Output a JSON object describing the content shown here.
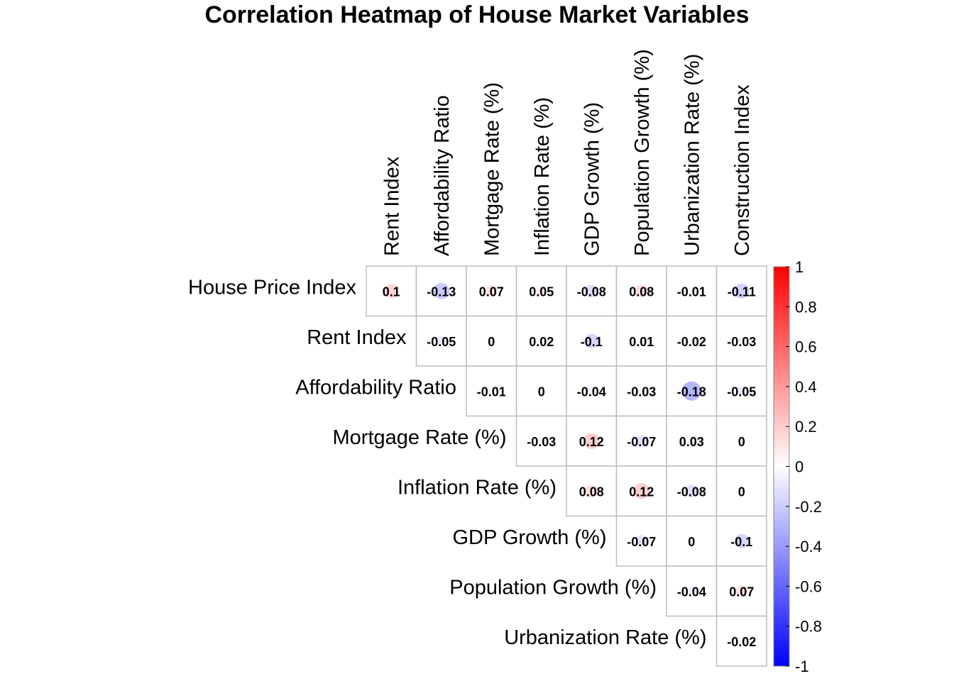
{
  "chart_data": {
    "type": "heatmap",
    "title": "Correlation Heatmap of House Market Variables",
    "row_labels": [
      "House Price Index",
      "Rent Index",
      "Affordability Ratio",
      "Mortgage Rate (%)",
      "Inflation Rate (%)",
      "GDP Growth (%)",
      "Population Growth (%)",
      "Urbanization Rate (%)"
    ],
    "column_labels": [
      "Rent Index",
      "Affordability Ratio",
      "Mortgage Rate (%)",
      "Inflation Rate (%)",
      "GDP Growth (%)",
      "Population Growth (%)",
      "Urbanization Rate (%)",
      "Construction Index"
    ],
    "matrix_shape": "upper-triangle",
    "cells": [
      {
        "row": 0,
        "col": 0,
        "value": 0.1,
        "label": "0.1"
      },
      {
        "row": 0,
        "col": 1,
        "value": -0.13,
        "label": "-0.13"
      },
      {
        "row": 0,
        "col": 2,
        "value": 0.07,
        "label": "0.07"
      },
      {
        "row": 0,
        "col": 3,
        "value": 0.05,
        "label": "0.05"
      },
      {
        "row": 0,
        "col": 4,
        "value": -0.08,
        "label": "-0.08"
      },
      {
        "row": 0,
        "col": 5,
        "value": 0.08,
        "label": "0.08"
      },
      {
        "row": 0,
        "col": 6,
        "value": -0.01,
        "label": "-0.01"
      },
      {
        "row": 0,
        "col": 7,
        "value": -0.11,
        "label": "-0.11"
      },
      {
        "row": 1,
        "col": 1,
        "value": -0.05,
        "label": "-0.05"
      },
      {
        "row": 1,
        "col": 2,
        "value": 0,
        "label": "0"
      },
      {
        "row": 1,
        "col": 3,
        "value": 0.02,
        "label": "0.02"
      },
      {
        "row": 1,
        "col": 4,
        "value": -0.1,
        "label": "-0.1"
      },
      {
        "row": 1,
        "col": 5,
        "value": 0.01,
        "label": "0.01"
      },
      {
        "row": 1,
        "col": 6,
        "value": -0.02,
        "label": "-0.02"
      },
      {
        "row": 1,
        "col": 7,
        "value": -0.03,
        "label": "-0.03"
      },
      {
        "row": 2,
        "col": 2,
        "value": -0.01,
        "label": "-0.01"
      },
      {
        "row": 2,
        "col": 3,
        "value": 0,
        "label": "0"
      },
      {
        "row": 2,
        "col": 4,
        "value": -0.04,
        "label": "-0.04"
      },
      {
        "row": 2,
        "col": 5,
        "value": -0.03,
        "label": "-0.03"
      },
      {
        "row": 2,
        "col": 6,
        "value": -0.18,
        "label": "-0.18"
      },
      {
        "row": 2,
        "col": 7,
        "value": -0.05,
        "label": "-0.05"
      },
      {
        "row": 3,
        "col": 3,
        "value": -0.03,
        "label": "-0.03"
      },
      {
        "row": 3,
        "col": 4,
        "value": 0.12,
        "label": "0.12"
      },
      {
        "row": 3,
        "col": 5,
        "value": -0.07,
        "label": "-0.07"
      },
      {
        "row": 3,
        "col": 6,
        "value": 0.03,
        "label": "0.03"
      },
      {
        "row": 3,
        "col": 7,
        "value": 0,
        "label": "0"
      },
      {
        "row": 4,
        "col": 4,
        "value": 0.08,
        "label": "0.08"
      },
      {
        "row": 4,
        "col": 5,
        "value": 0.12,
        "label": "0.12"
      },
      {
        "row": 4,
        "col": 6,
        "value": -0.08,
        "label": "-0.08"
      },
      {
        "row": 4,
        "col": 7,
        "value": 0,
        "label": "0"
      },
      {
        "row": 5,
        "col": 5,
        "value": -0.07,
        "label": "-0.07"
      },
      {
        "row": 5,
        "col": 6,
        "value": 0,
        "label": "0"
      },
      {
        "row": 5,
        "col": 7,
        "value": -0.1,
        "label": "-0.1"
      },
      {
        "row": 6,
        "col": 6,
        "value": -0.04,
        "label": "-0.04"
      },
      {
        "row": 6,
        "col": 7,
        "value": 0.07,
        "label": "0.07"
      },
      {
        "row": 7,
        "col": 7,
        "value": -0.02,
        "label": "-0.02"
      }
    ],
    "color_scale": {
      "min": -1,
      "max": 1,
      "low_color": "#0000ff",
      "mid_color": "#ffffff",
      "high_color": "#ff0000",
      "ticks": [
        {
          "value": 1,
          "label": "1"
        },
        {
          "value": 0.8,
          "label": "0.8"
        },
        {
          "value": 0.6,
          "label": "0.6"
        },
        {
          "value": 0.4,
          "label": "0.4"
        },
        {
          "value": 0.2,
          "label": "0.2"
        },
        {
          "value": 0,
          "label": "0"
        },
        {
          "value": -0.2,
          "label": "-0.2"
        },
        {
          "value": -0.4,
          "label": "-0.4"
        },
        {
          "value": -0.6,
          "label": "-0.6"
        },
        {
          "value": -0.8,
          "label": "-0.8"
        },
        {
          "value": -1,
          "label": "-1"
        }
      ]
    },
    "marker": "circle sized by |value|",
    "grid": true,
    "legend_placement": "right"
  }
}
